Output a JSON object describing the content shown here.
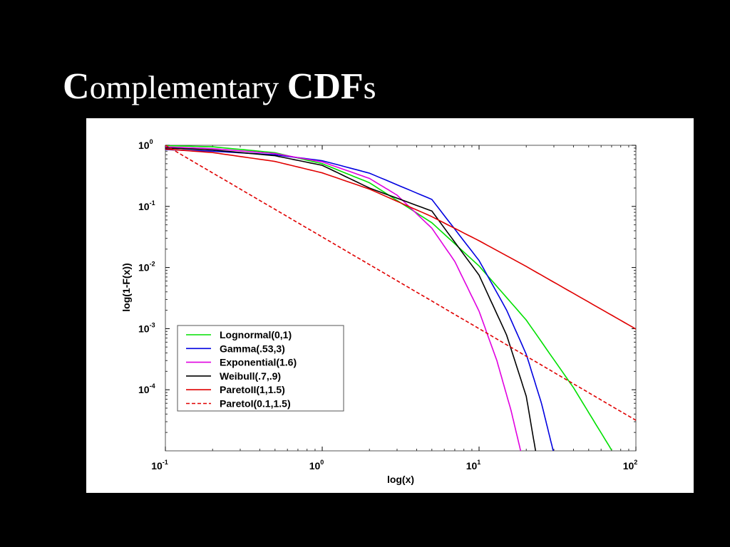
{
  "slide": {
    "title_parts": [
      {
        "text": "C",
        "cls": "cap bold"
      },
      {
        "text": "omplementary ",
        "cls": "small"
      },
      {
        "text": "CDF",
        "cls": "cap bold"
      },
      {
        "text": "s",
        "cls": "small"
      }
    ]
  },
  "chart_data": {
    "type": "line",
    "title": "",
    "xlabel": "log(x)",
    "ylabel": "log(1-F(x))",
    "xscale": "log",
    "yscale": "log",
    "xlim": [
      0.1,
      100
    ],
    "ylim": [
      1e-05,
      1
    ],
    "x_ticks": [
      {
        "base": "10",
        "exp": "-1",
        "value": 0.1
      },
      {
        "base": "10",
        "exp": "0",
        "value": 1
      },
      {
        "base": "10",
        "exp": "1",
        "value": 10
      },
      {
        "base": "10",
        "exp": "2",
        "value": 100
      }
    ],
    "y_ticks": [
      {
        "base": "10",
        "exp": "0",
        "value": 1
      },
      {
        "base": "10",
        "exp": "-1",
        "value": 0.1
      },
      {
        "base": "10",
        "exp": "-2",
        "value": 0.01
      },
      {
        "base": "10",
        "exp": "-3",
        "value": 0.001
      },
      {
        "base": "10",
        "exp": "-4",
        "value": 0.0001
      }
    ],
    "legend_position": "bottom-left",
    "series": [
      {
        "name": "Lognormal(0,1)",
        "color": "#00e000",
        "dash": "solid",
        "x": [
          0.1,
          0.2,
          0.5,
          1,
          2,
          5,
          10,
          20,
          40,
          70
        ],
        "y": [
          0.989,
          0.946,
          0.756,
          0.5,
          0.244,
          0.054,
          0.0106,
          0.00138,
          0.000108,
          1.03e-05
        ]
      },
      {
        "name": "Gamma(.53,3)",
        "color": "#0000e0",
        "dash": "solid",
        "x": [
          0.1,
          0.2,
          0.5,
          1,
          2,
          5,
          10,
          15,
          20,
          25,
          30
        ],
        "y": [
          0.85,
          0.8,
          0.7,
          0.56,
          0.35,
          0.13,
          0.013,
          0.002,
          0.00038,
          6e-05,
          9e-06
        ]
      },
      {
        "name": "Exponential(1.6)",
        "color": "#e000e0",
        "dash": "solid",
        "x": [
          0.1,
          0.2,
          0.5,
          1,
          2,
          3,
          5,
          7,
          10,
          13,
          16,
          18.5
        ],
        "y": [
          0.939,
          0.882,
          0.732,
          0.535,
          0.287,
          0.153,
          0.044,
          0.0126,
          0.00193,
          0.000297,
          4.55e-05,
          9.5e-06
        ]
      },
      {
        "name": "Weibull(.7,.9)",
        "color": "#000000",
        "dash": "solid",
        "x": [
          0.1,
          0.2,
          0.5,
          1,
          2,
          5,
          10,
          15,
          20,
          23
        ],
        "y": [
          0.905,
          0.84,
          0.675,
          0.47,
          0.2,
          0.084,
          0.0075,
          0.00078,
          7.8e-05,
          9.5e-06
        ]
      },
      {
        "name": "ParetoII(1,1.5)",
        "color": "#e00000",
        "dash": "solid",
        "x": [
          0.1,
          0.2,
          0.5,
          1,
          2,
          5,
          10,
          20,
          50,
          100
        ],
        "y": [
          0.867,
          0.761,
          0.544,
          0.354,
          0.192,
          0.068,
          0.0274,
          0.0104,
          0.00272,
          0.000985
        ]
      },
      {
        "name": "ParetoI(0.1,1.5)",
        "color": "#e00000",
        "dash": "dashed",
        "x": [
          0.1,
          1,
          10,
          100
        ],
        "y": [
          1,
          0.0316,
          0.001,
          3.16e-05
        ]
      }
    ]
  }
}
